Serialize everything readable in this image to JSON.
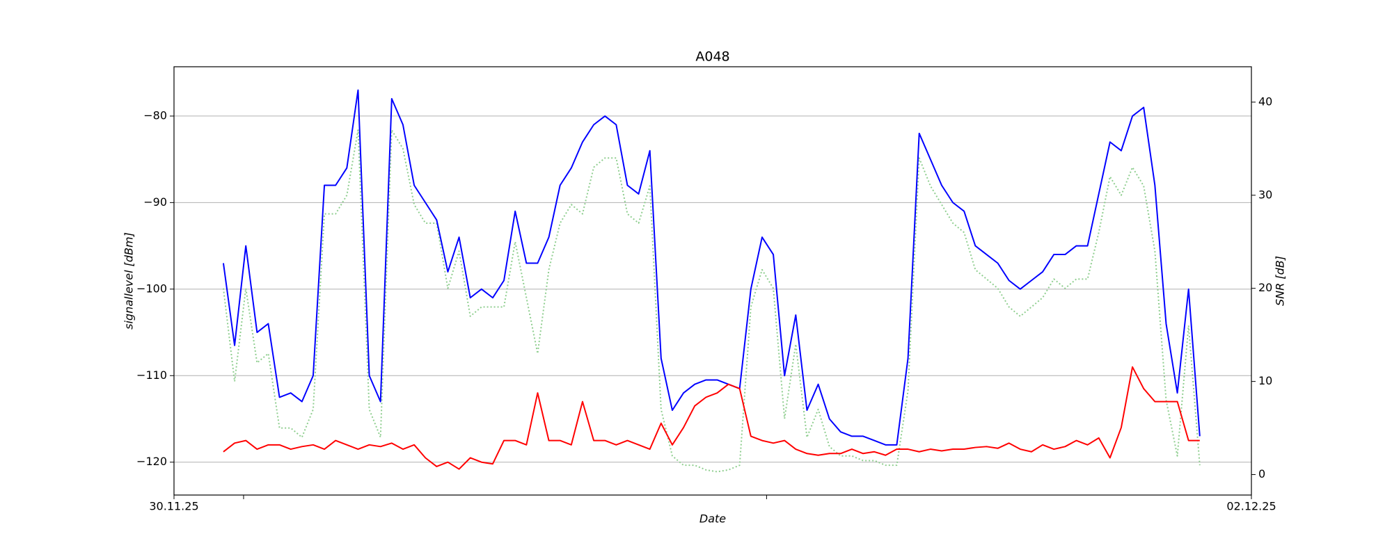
{
  "chart_data": {
    "type": "line",
    "title": "A048",
    "xlabel": "Date",
    "ylabel": "signallevel [dBm]",
    "y2label": "SNR [dB]",
    "xlim": [
      0,
      48
    ],
    "xticks": [
      {
        "value": 0,
        "label": "30.11.25"
      },
      {
        "value": 3.1,
        "label": null
      },
      {
        "value": 26.4,
        "label": null
      },
      {
        "value": 48,
        "label": "02.12.25"
      }
    ],
    "ylim": [
      -123.8,
      -74.3
    ],
    "yticks": [
      {
        "value": -120,
        "label": "−120"
      },
      {
        "value": -110,
        "label": "−110"
      },
      {
        "value": -100,
        "label": "−100"
      },
      {
        "value": -90,
        "label": "−90"
      },
      {
        "value": -80,
        "label": "−80"
      }
    ],
    "y2lim": [
      -2.2,
      43.8
    ],
    "y2ticks": [
      0,
      10,
      20,
      30,
      40
    ],
    "grid": true,
    "x": [
      2.2,
      2.7,
      3.2,
      3.7,
      4.2,
      4.7,
      5.2,
      5.7,
      6.2,
      6.7,
      7.2,
      7.7,
      8.2,
      8.7,
      9.2,
      9.7,
      10.2,
      10.7,
      11.2,
      11.7,
      12.2,
      12.7,
      13.2,
      13.7,
      14.2,
      14.7,
      15.2,
      15.7,
      16.2,
      16.7,
      17.2,
      17.7,
      18.2,
      18.7,
      19.2,
      19.7,
      20.2,
      20.7,
      21.2,
      21.7,
      22.2,
      22.7,
      23.2,
      23.7,
      24.2,
      24.7,
      25.2,
      25.7,
      26.2,
      26.7,
      27.2,
      27.7,
      28.2,
      28.7,
      29.2,
      29.7,
      30.2,
      30.7,
      31.2,
      31.7,
      32.2,
      32.7,
      33.2,
      33.7,
      34.2,
      34.7,
      35.2,
      35.7,
      36.2,
      36.7,
      37.2,
      37.7,
      38.2,
      38.7,
      39.2,
      39.7,
      40.2,
      40.7,
      41.2,
      41.7,
      42.2,
      42.7,
      43.2,
      43.7,
      44.2,
      44.7,
      45.2,
      45.7
    ],
    "series": [
      {
        "color": "#0000ff",
        "style": "solid",
        "axis": "y",
        "values": [
          -97,
          -106.5,
          -95,
          -105,
          -104,
          -112.5,
          -112,
          -113,
          -110,
          -88,
          -88,
          -86,
          -77,
          -110,
          -113,
          -78,
          -81,
          -88,
          -90,
          -92,
          -98,
          -94,
          -101,
          -100,
          -101,
          -99,
          -91,
          -97,
          -97,
          -94,
          -88,
          -86,
          -83,
          -81,
          -80,
          -81,
          -88,
          -89,
          -84,
          -108,
          -114,
          -112,
          -111,
          -110.5,
          -110.5,
          -111,
          -111.5,
          -100,
          -94,
          -96,
          -110,
          -103,
          -114,
          -111,
          -115,
          -116.5,
          -117,
          -117,
          -117.5,
          -118,
          -118,
          -108,
          -82,
          -85,
          -88,
          -90,
          -91,
          -95,
          -96,
          -97,
          -99,
          -100,
          -99,
          -98,
          -96,
          -96,
          -95,
          -95,
          -89,
          -83,
          -84,
          -80,
          -79,
          -88,
          -104,
          -112,
          -100,
          -117
        ]
      },
      {
        "color": "#ff0000",
        "style": "solid",
        "axis": "y",
        "values": [
          -118.8,
          -117.8,
          -117.5,
          -118.5,
          -118,
          -118,
          -118.5,
          -118.2,
          -118,
          -118.5,
          -117.5,
          -118,
          -118.5,
          -118,
          -118.2,
          -117.8,
          -118.5,
          -118,
          -119.5,
          -120.5,
          -120,
          -120.8,
          -119.5,
          -120,
          -120.2,
          -117.5,
          -117.5,
          -118,
          -112,
          -117.5,
          -117.5,
          -118,
          -113,
          -117.5,
          -117.5,
          -118,
          -117.5,
          -118,
          -118.5,
          -115.5,
          -118,
          -116,
          -113.5,
          -112.5,
          -112,
          -111,
          -111.5,
          -117,
          -117.5,
          -117.8,
          -117.5,
          -118.5,
          -119,
          -119.2,
          -119,
          -119,
          -118.5,
          -119,
          -118.8,
          -119.2,
          -118.5,
          -118.5,
          -118.8,
          -118.5,
          -118.7,
          -118.5,
          -118.5,
          -118.3,
          -118.2,
          -118.4,
          -117.8,
          -118.5,
          -118.8,
          -118,
          -118.5,
          -118.2,
          -117.5,
          -118,
          -117.2,
          -119.5,
          -116,
          -109,
          -111.5,
          -113,
          -113,
          -113,
          -117.5,
          -117.5
        ]
      },
      {
        "color": "#8fce8f",
        "style": "dotted",
        "axis": "y2",
        "values": [
          20,
          10,
          20,
          12,
          13,
          5,
          5,
          4,
          7,
          28,
          28,
          30,
          37,
          7,
          4,
          37,
          35,
          29,
          27,
          27,
          20,
          24,
          17,
          18,
          18,
          18,
          25,
          19,
          13,
          22,
          27,
          29,
          28,
          33,
          34,
          34,
          28,
          27,
          31,
          7,
          2,
          1,
          1,
          0.5,
          0.3,
          0.5,
          1,
          18,
          22,
          20,
          6,
          14,
          4,
          7,
          3,
          2,
          2,
          1.5,
          1.5,
          1,
          1,
          9,
          34,
          31,
          29,
          27,
          26,
          22,
          21,
          20,
          18,
          17,
          18,
          19,
          21,
          20,
          21,
          21,
          26,
          32,
          30,
          33,
          31,
          24,
          8,
          2,
          16,
          1
        ]
      }
    ]
  }
}
